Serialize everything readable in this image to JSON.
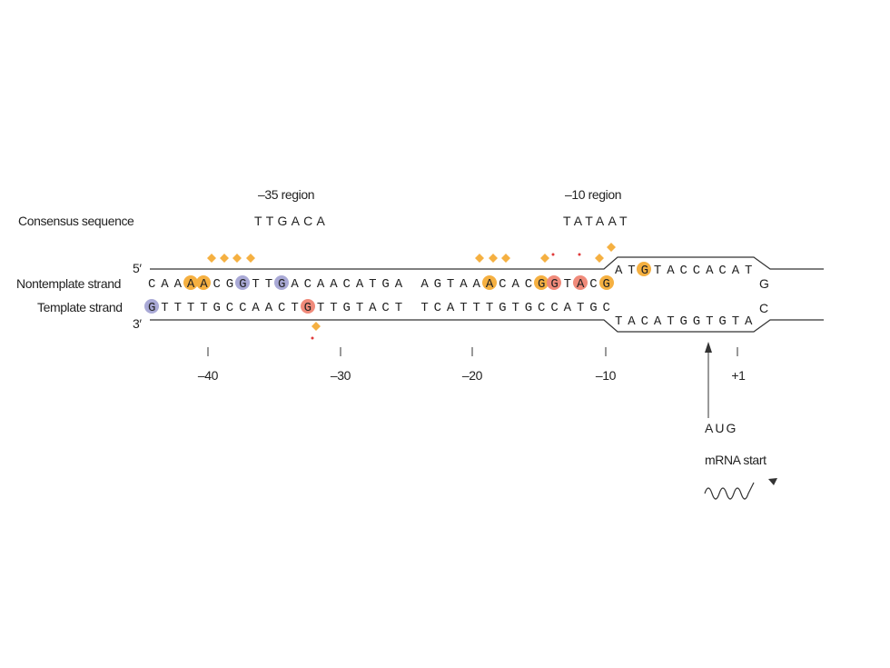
{
  "consensus": {
    "label": "Consensus sequence",
    "minus35": {
      "title": "–35 region",
      "sequence": "TTGACA"
    },
    "minus10": {
      "title": "–10 region",
      "sequence": "TATAAT"
    }
  },
  "strands": {
    "nontemplate": {
      "label": "Nontemplate strand",
      "end": "5′",
      "sequence": "CAAAACGGTTGACAACATGA AGTAAACACGGTACG",
      "bubble": "ATGTACCACAT",
      "loop": "G"
    },
    "template": {
      "label": "Template strand",
      "end": "3′",
      "sequence": "GTTTTGCCAACTGTTGTACT TCATTTGTGCCATGC",
      "bubble": "TACATGGTGTA",
      "loop": "C"
    }
  },
  "positions": [
    "–40",
    "–30",
    "–20",
    "–10",
    "+1"
  ],
  "start": {
    "codon": "AUG",
    "label": "mRNA start"
  }
}
